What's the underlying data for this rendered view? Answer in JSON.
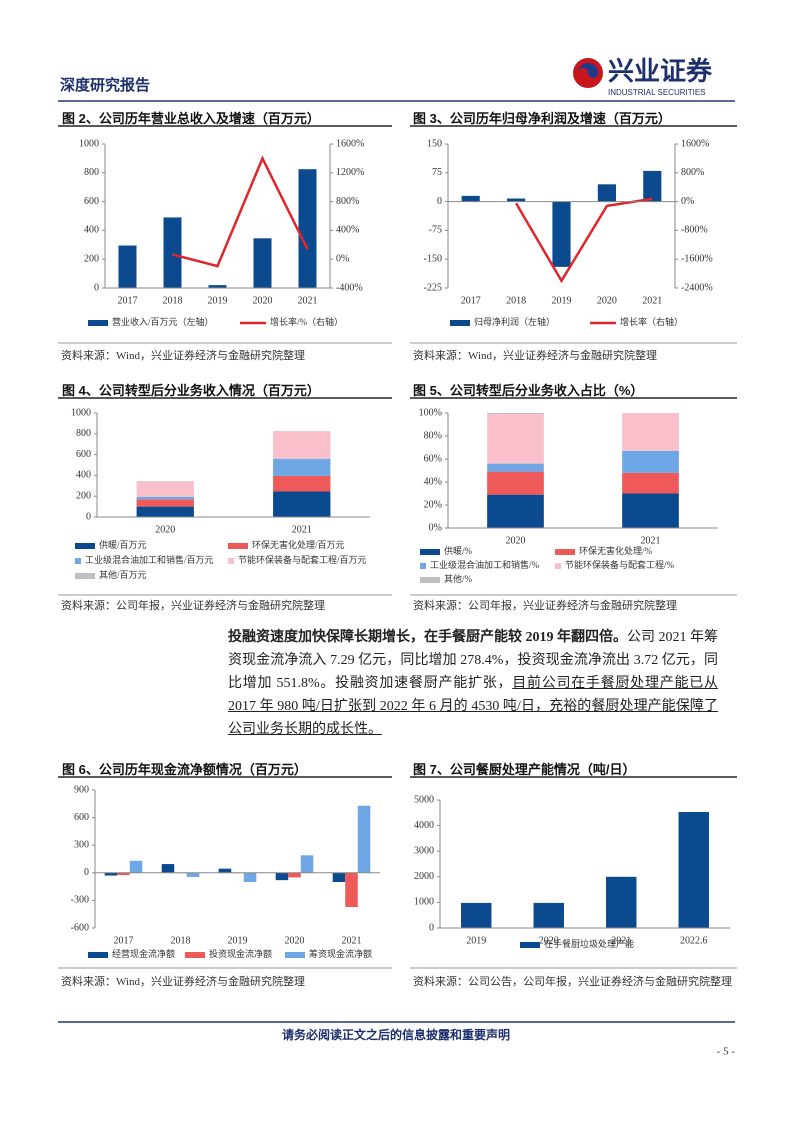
{
  "header": {
    "report_type": "深度研究报告",
    "logo_name": "兴业证券",
    "logo_en": "INDUSTRIAL SECURITIES"
  },
  "chart_data": [
    {
      "type": "bar",
      "title": "图 2、公司历年营业总收入及增速（百万元）",
      "source": "资料来源：Wind，兴业证券经济与金融研究院整理",
      "categories": [
        "2017",
        "2018",
        "2019",
        "2020",
        "2021"
      ],
      "series": [
        {
          "name": "营业收入/百万元（左轴）",
          "color": "#0b4a8f",
          "values": [
            295,
            490,
            20,
            345,
            825
          ]
        },
        {
          "name": "增长率/%（右轴）",
          "color": "#e0262a",
          "type": "line",
          "axis": "y2",
          "values": [
            null,
            66,
            -96,
            1400,
            139
          ]
        }
      ],
      "ylim": [
        0,
        1000
      ],
      "yticks": [
        0,
        200,
        400,
        600,
        800,
        1000
      ],
      "y2lim": [
        -400,
        1600
      ],
      "y2ticks": [
        {
          "value": -400,
          "label": "-400%"
        },
        {
          "value": 0,
          "label": "0%"
        },
        {
          "value": 400,
          "label": "400%"
        },
        {
          "value": 800,
          "label": "800%"
        },
        {
          "value": 1200,
          "label": "1200%"
        },
        {
          "value": 1600,
          "label": "1600%"
        }
      ]
    },
    {
      "type": "bar",
      "title": "图 3、公司历年归母净利润及增速（百万元）",
      "source": "资料来源：Wind，兴业证券经济与金融研究院整理",
      "categories": [
        "2017",
        "2018",
        "2019",
        "2020",
        "2021"
      ],
      "series": [
        {
          "name": "归母净利润（左轴）",
          "color": "#0b4a8f",
          "values": [
            15,
            8,
            -170,
            45,
            80
          ]
        },
        {
          "name": "增长率（右轴）",
          "color": "#e0262a",
          "type": "line",
          "axis": "y2",
          "values": [
            null,
            -47,
            -2200,
            -120,
            78
          ]
        }
      ],
      "ylim": [
        -225,
        150
      ],
      "yticks": [
        -225,
        -150,
        -75,
        0,
        75,
        150
      ],
      "y2lim": [
        -2400,
        1600
      ],
      "y2ticks": [
        {
          "value": -2400,
          "label": "-2400%"
        },
        {
          "value": -1600,
          "label": "-1600%"
        },
        {
          "value": -800,
          "label": "-800%"
        },
        {
          "value": 0,
          "label": "0%"
        },
        {
          "value": 800,
          "label": "800%"
        },
        {
          "value": 1600,
          "label": "1600%"
        }
      ]
    },
    {
      "type": "stacked-bar",
      "title": "图 4、公司转型后分业务收入情况（百万元）",
      "source": "资料来源：公司年报，兴业证券经济与金融研究院整理",
      "categories": [
        "2020",
        "2021"
      ],
      "series": [
        {
          "name": "供暖/百万元",
          "color": "#0b4a8f",
          "values": [
            100,
            245
          ]
        },
        {
          "name": "环保无害化处理/百万元",
          "color": "#ee5a5a",
          "values": [
            70,
            150
          ]
        },
        {
          "name": "工业级混合油加工和销售/百万元",
          "color": "#6ea6e6",
          "values": [
            25,
            165
          ]
        },
        {
          "name": "节能环保装备与配套工程/百万元",
          "color": "#f9c0cb",
          "values": [
            148,
            262
          ]
        },
        {
          "name": "其他/百万元",
          "color": "#bfbfbf",
          "values": [
            2,
            3
          ]
        }
      ],
      "ylim": [
        0,
        1000
      ],
      "yticks": [
        0,
        200,
        400,
        600,
        800,
        1000
      ]
    },
    {
      "type": "stacked-bar",
      "title": "图 5、公司转型后分业务收入占比（%）",
      "source": "资料来源：公司年报，兴业证券经济与金融研究院整理",
      "categories": [
        "2020",
        "2021"
      ],
      "series": [
        {
          "name": "供暖/%",
          "color": "#0b4a8f",
          "values": [
            29,
            30
          ]
        },
        {
          "name": "环保无害化处理/%",
          "color": "#ee5a5a",
          "values": [
            20,
            18
          ]
        },
        {
          "name": "工业级混合油加工和销售/%",
          "color": "#6ea6e6",
          "values": [
            7,
            19
          ]
        },
        {
          "name": "节能环保装备与配套工程/%",
          "color": "#f9c0cb",
          "values": [
            43,
            33
          ]
        },
        {
          "name": "其他/%",
          "color": "#bfbfbf",
          "values": [
            1,
            0
          ]
        }
      ],
      "ylim": [
        0,
        100
      ],
      "yticks": [
        {
          "value": 0,
          "label": "0%"
        },
        {
          "value": 20,
          "label": "20%"
        },
        {
          "value": 40,
          "label": "40%"
        },
        {
          "value": 60,
          "label": "60%"
        },
        {
          "value": 80,
          "label": "80%"
        },
        {
          "value": 100,
          "label": "100%"
        }
      ]
    },
    {
      "type": "bar",
      "title": "图 6、公司历年现金流净额情况（百万元）",
      "source": "资料来源：Wind，兴业证券经济与金融研究院整理",
      "categories": [
        "2017",
        "2018",
        "2019",
        "2020",
        "2021"
      ],
      "series": [
        {
          "name": "经营现金流净额",
          "color": "#0b4a8f",
          "values": [
            -30,
            95,
            45,
            -80,
            -100
          ]
        },
        {
          "name": "投资现金流净额",
          "color": "#ee5a5a",
          "values": [
            -25,
            -5,
            -5,
            -50,
            -372
          ]
        },
        {
          "name": "筹资现金流净额",
          "color": "#6ea6e6",
          "values": [
            130,
            -45,
            -100,
            190,
            729
          ]
        }
      ],
      "ylim": [
        -600,
        900
      ],
      "yticks": [
        -600,
        -300,
        0,
        300,
        600,
        900
      ]
    },
    {
      "type": "bar",
      "title": "图 7、公司餐厨处理产能情况（吨/日）",
      "source": "资料来源：公司公告，公司年报，兴业证券经济与金融研究院整理",
      "categories": [
        "2019",
        "2020",
        "2021",
        "2022.6"
      ],
      "series": [
        {
          "name": "在手餐厨垃圾处理产能",
          "color": "#0b4a8f",
          "values": [
            980,
            980,
            2000,
            4530
          ]
        }
      ],
      "ylim": [
        0,
        5000
      ],
      "yticks": [
        0,
        1000,
        2000,
        3000,
        4000,
        5000
      ]
    }
  ],
  "paragraph": {
    "lead": "投融资速度加快保障长期增长，在手餐厨产能较 2019 年翻四倍。",
    "body": "公司 2021 年筹资现金流净流入 7.29 亿元，同比增加 278.4%，投资现金流净流出 3.72 亿元，同比增加 551.8%。投融资加速餐厨产能扩张，",
    "underlined": "目前公司在手餐厨处理产能已从 2017 年 980 吨/日扩张到 2022 年 6 月的 4530 吨/日，充裕的餐厨处理产能保障了公司业务长期的成长性。"
  },
  "footer": {
    "disclaimer": "请务必阅读正文之后的信息披露和重要声明",
    "page": "- 5 -"
  }
}
